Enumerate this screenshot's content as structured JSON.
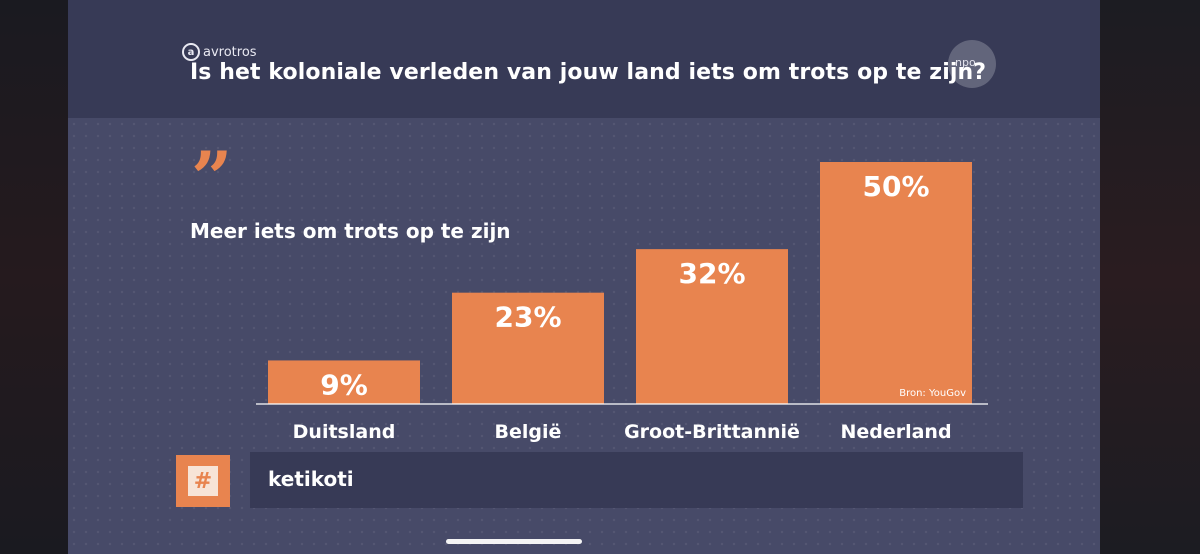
{
  "broadcaster": {
    "logo_text": "avrotros",
    "logo_mark": "a",
    "channel_logo": "npo"
  },
  "question": "Is het koloniale verleden van jouw land iets om trots op te zijn?",
  "quote_icon": "quote-icon",
  "subtitle": "Meer iets om trots op te zijn",
  "chart_data": {
    "type": "bar",
    "categories": [
      "Duitsland",
      "België",
      "Groot-Brittannië",
      "Nederland"
    ],
    "values": [
      9,
      23,
      32,
      50
    ],
    "value_labels": [
      "9%",
      "23%",
      "32%",
      "50%"
    ],
    "title": "Meer iets om trots op te zijn",
    "xlabel": "",
    "ylabel": "",
    "ylim": [
      0,
      50
    ],
    "grid": false,
    "bar_color": "#e8844f",
    "source_note": "Bron: YouGov"
  },
  "hashtag": {
    "icon": "#",
    "text": "ketikoti"
  },
  "colors": {
    "accent": "#e8844f",
    "panel": "#474a68",
    "header": "#373a56"
  }
}
